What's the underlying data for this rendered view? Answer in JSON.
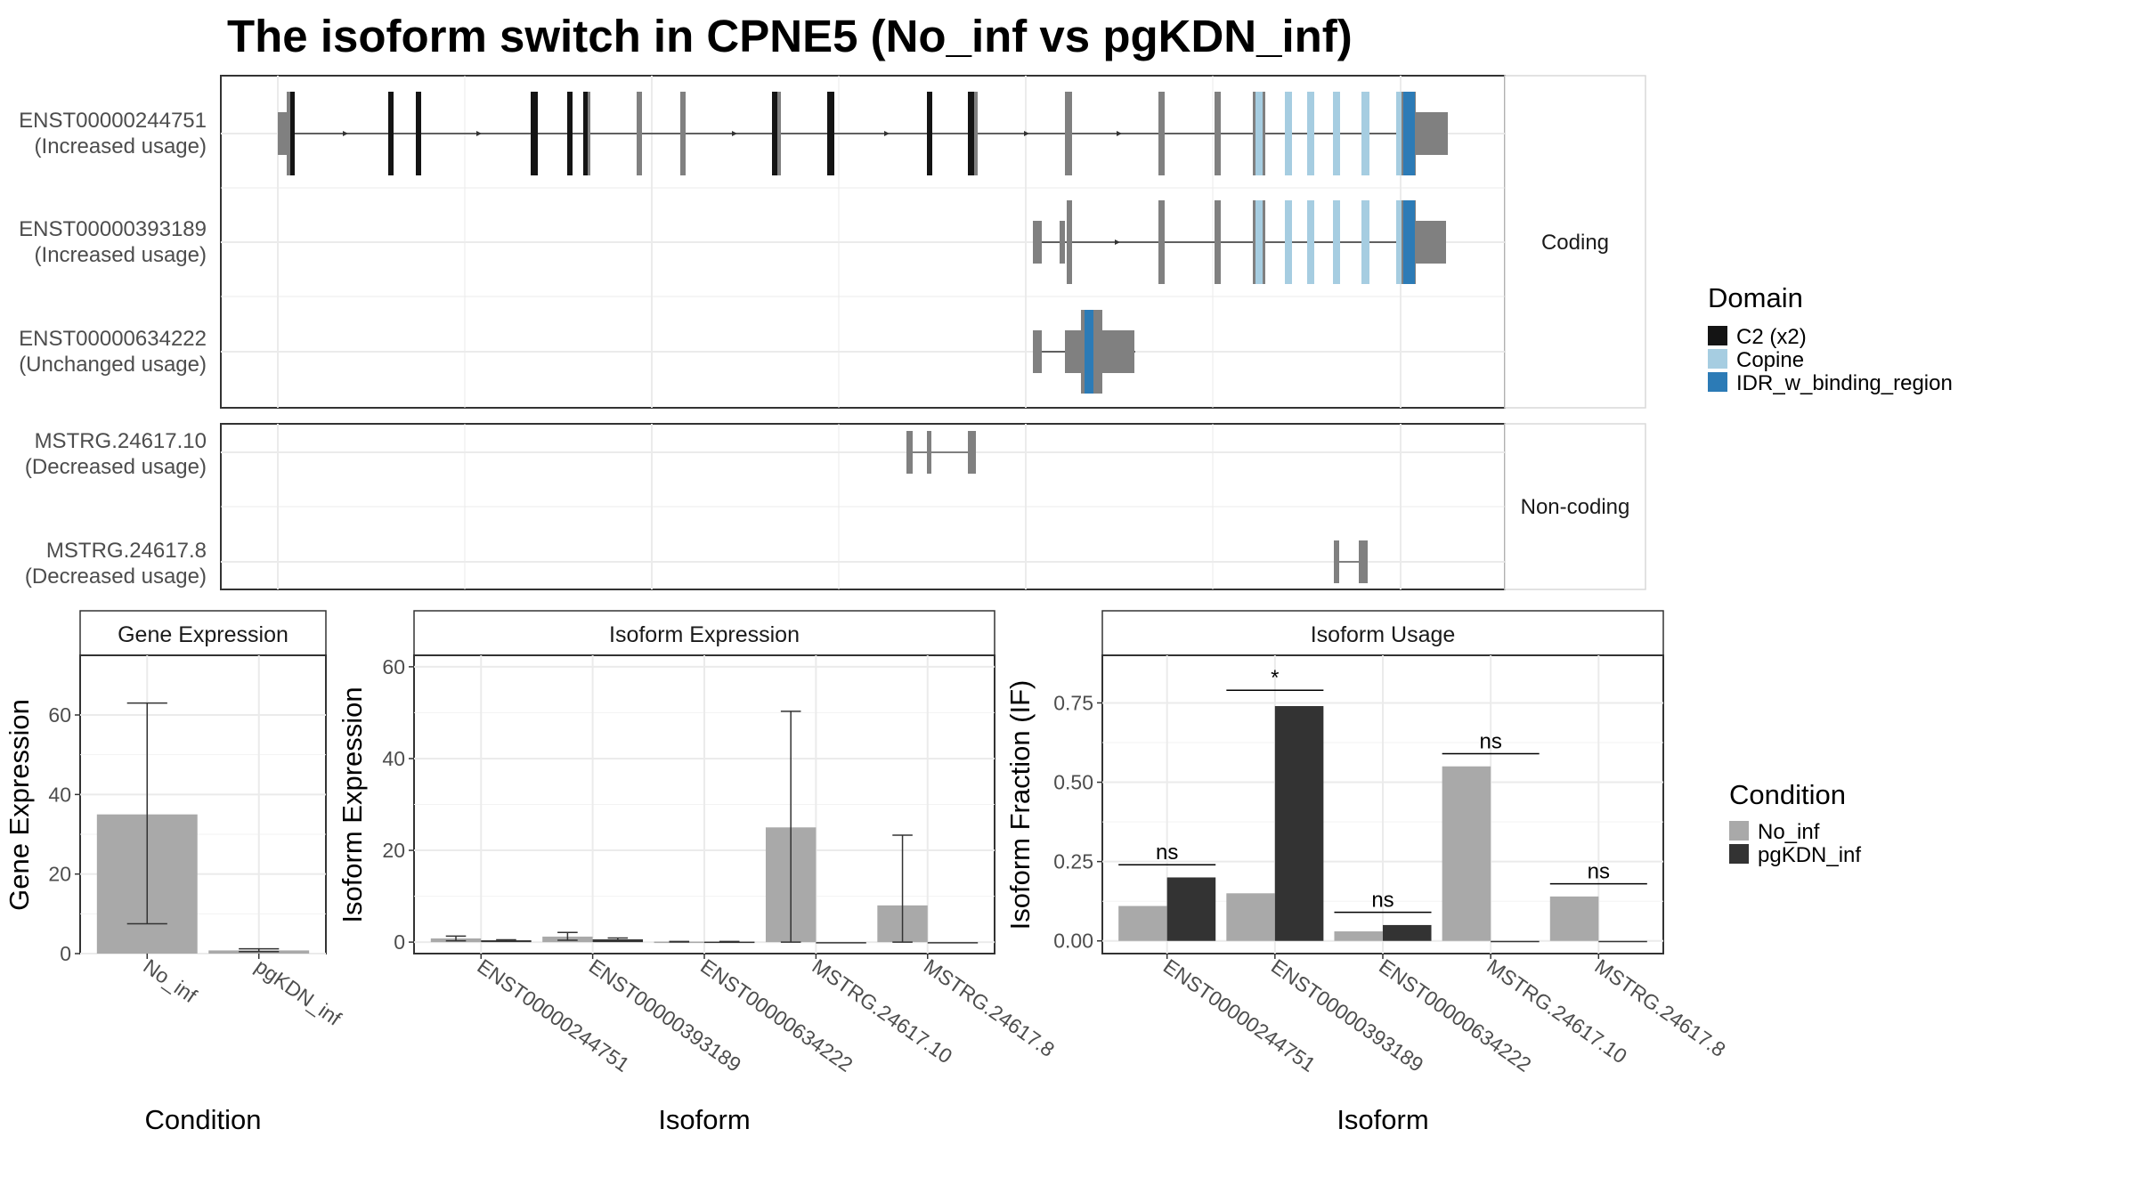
{
  "title": "The isoform switch in CPNE5 (No_inf vs pgKDN_inf)",
  "colors": {
    "exon": "#808080",
    "c2": "#141414",
    "copine": "#a6cde1",
    "idr": "#2c7bb6",
    "no_inf": "#a9a9a9",
    "pgkdn_inf": "#333333"
  },
  "structure_panel": {
    "strips": [
      {
        "key": "coding",
        "label": "Coding"
      },
      {
        "key": "noncoding",
        "label": "Non-coding"
      }
    ],
    "transcripts": [
      {
        "id": "ENST00000244751",
        "usage": "(Increased usage)",
        "group": "coding"
      },
      {
        "id": "ENST00000393189",
        "usage": "(Increased usage)",
        "group": "coding"
      },
      {
        "id": "ENST00000634222",
        "usage": "(Unchanged usage)",
        "group": "coding"
      },
      {
        "id": "MSTRG.24617.10",
        "usage": "(Decreased usage)",
        "group": "noncoding"
      },
      {
        "id": "MSTRG.24617.8",
        "usage": "(Decreased usage)",
        "group": "noncoding"
      }
    ]
  },
  "domain_legend": {
    "title": "Domain",
    "items": [
      {
        "label": "C2 (x2)",
        "color": "#141414"
      },
      {
        "label": "Copine",
        "color": "#a6cde1"
      },
      {
        "label": "IDR_w_binding_region",
        "color": "#2c7bb6"
      }
    ]
  },
  "condition_legend": {
    "title": "Condition",
    "items": [
      {
        "label": "No_inf",
        "color": "#a9a9a9"
      },
      {
        "label": "pgKDN_inf",
        "color": "#333333"
      }
    ]
  },
  "chart_data": [
    {
      "type": "bar",
      "title": "Gene Expression",
      "xlabel": "Condition",
      "ylabel": "Gene Expression",
      "categories": [
        "No_inf",
        "pgKDN_inf"
      ],
      "values": [
        35,
        0.8
      ],
      "error_low": [
        7.5,
        0.5
      ],
      "error_high": [
        63,
        1.2
      ],
      "ylim": [
        0,
        75
      ],
      "yticks": [
        0,
        20,
        40,
        60
      ],
      "grid": true
    },
    {
      "type": "bar",
      "title": "Isoform Expression",
      "xlabel": "Isoform",
      "ylabel": "Isoform Expression",
      "categories": [
        "ENST00000244751",
        "ENST00000393189",
        "ENST00000634222",
        "MSTRG.24617.10",
        "MSTRG.24617.8"
      ],
      "series": [
        {
          "name": "No_inf",
          "values": [
            0.8,
            1.2,
            0.1,
            25,
            8
          ],
          "error_low": [
            0.3,
            0.4,
            0.05,
            0,
            0
          ],
          "error_high": [
            1.3,
            2.1,
            0.15,
            50.3,
            23.3
          ]
        },
        {
          "name": "pgKDN_inf",
          "values": [
            0.4,
            0.6,
            0.1,
            0,
            0
          ],
          "error_low": [
            0.2,
            0.3,
            0.05,
            0,
            0
          ],
          "error_high": [
            0.5,
            0.9,
            0.15,
            0,
            0
          ]
        }
      ],
      "ylim": [
        -2.5,
        62.5
      ],
      "yticks": [
        0,
        20,
        40,
        60
      ],
      "grid": true
    },
    {
      "type": "bar",
      "title": "Isoform Usage",
      "xlabel": "Isoform",
      "ylabel": "Isoform Fraction (IF)",
      "categories": [
        "ENST00000244751",
        "ENST00000393189",
        "ENST00000634222",
        "MSTRG.24617.10",
        "MSTRG.24617.8"
      ],
      "series": [
        {
          "name": "No_inf",
          "values": [
            0.11,
            0.15,
            0.03,
            0.55,
            0.14
          ]
        },
        {
          "name": "pgKDN_inf",
          "values": [
            0.2,
            0.74,
            0.05,
            0,
            0
          ]
        }
      ],
      "significance": [
        "ns",
        "*",
        "ns",
        "ns",
        "ns"
      ],
      "significance_y": [
        0.24,
        0.79,
        0.09,
        0.59,
        0.18
      ],
      "ylim": [
        -0.04,
        0.9
      ],
      "yticks": [
        0.0,
        0.25,
        0.5,
        0.75
      ],
      "ytick_labels": [
        "0.00",
        "0.25",
        "0.50",
        "0.75"
      ],
      "grid": true
    }
  ]
}
